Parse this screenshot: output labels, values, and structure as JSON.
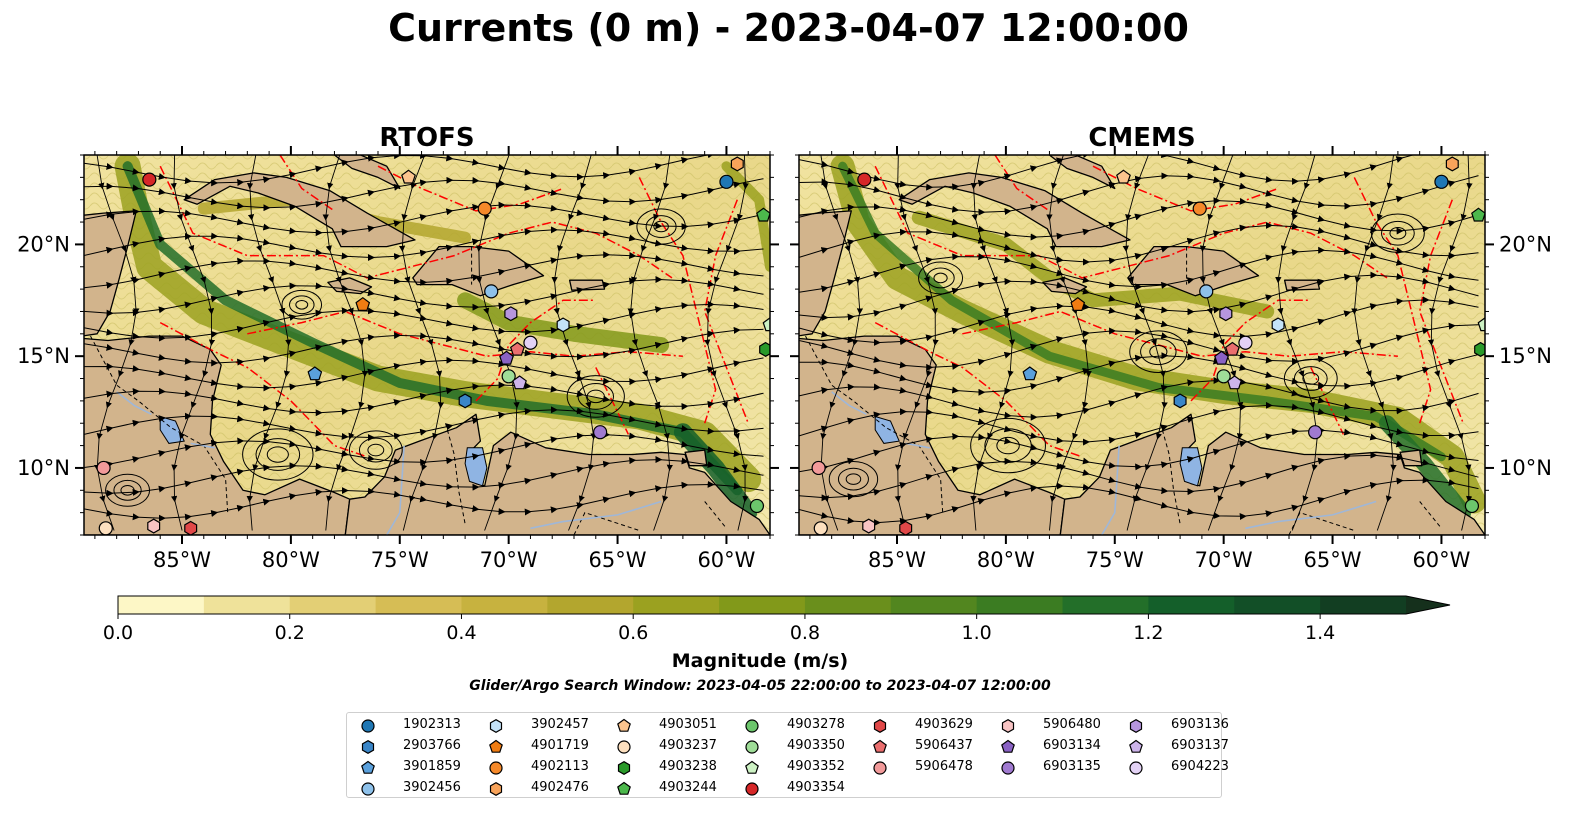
{
  "figure": {
    "title": "Currents (0 m) - 2023-04-07 12:00:00"
  },
  "chart_data": [
    {
      "type": "heatmap",
      "title": "RTOFS",
      "variable": "surface current magnitude with streamlines",
      "xlim": [
        -89.5,
        -58
      ],
      "ylim": [
        7,
        24
      ],
      "x_tick_labels": [
        "85°W",
        "80°W",
        "75°W",
        "70°W",
        "65°W",
        "60°W"
      ],
      "x_tick_values": [
        -85,
        -80,
        -75,
        -70,
        -65,
        -60
      ],
      "y_tick_labels": [
        "10°N",
        "15°N",
        "20°N"
      ],
      "y_tick_values": [
        10,
        15,
        20
      ],
      "floats": [
        {
          "id": "1902313",
          "lon": -60.0,
          "lat": 22.8
        },
        {
          "id": "2903766",
          "lon": -72.0,
          "lat": 13.0
        },
        {
          "id": "3901859",
          "lon": -78.9,
          "lat": 14.2
        },
        {
          "id": "3902456",
          "lon": -70.8,
          "lat": 17.9
        },
        {
          "id": "3902457",
          "lon": -67.5,
          "lat": 16.4
        },
        {
          "id": "4901719",
          "lon": -76.7,
          "lat": 17.3
        },
        {
          "id": "4902113",
          "lon": -71.1,
          "lat": 21.6
        },
        {
          "id": "4902476",
          "lon": -59.5,
          "lat": 23.6
        },
        {
          "id": "4903051",
          "lon": -74.6,
          "lat": 23.0
        },
        {
          "id": "4903237",
          "lon": -88.5,
          "lat": 7.3
        },
        {
          "id": "4903238",
          "lon": -58.2,
          "lat": 15.3
        },
        {
          "id": "4903244",
          "lon": -58.3,
          "lat": 21.3
        },
        {
          "id": "4903278",
          "lon": -58.6,
          "lat": 8.3
        },
        {
          "id": "4903350",
          "lon": -70.0,
          "lat": 14.1
        },
        {
          "id": "4903352",
          "lon": -58.0,
          "lat": 16.4
        },
        {
          "id": "4903354",
          "lon": -86.5,
          "lat": 22.9
        },
        {
          "id": "4903629",
          "lon": -84.6,
          "lat": 7.3
        },
        {
          "id": "5906437",
          "lon": -69.6,
          "lat": 15.3
        },
        {
          "id": "5906478",
          "lon": -88.6,
          "lat": 10.0
        },
        {
          "id": "5906480",
          "lon": -86.3,
          "lat": 7.4
        },
        {
          "id": "6903134",
          "lon": -70.1,
          "lat": 14.9
        },
        {
          "id": "6903135",
          "lon": -65.8,
          "lat": 11.6
        },
        {
          "id": "6903136",
          "lon": -69.9,
          "lat": 16.9
        },
        {
          "id": "6903137",
          "lon": -69.5,
          "lat": 13.8
        },
        {
          "id": "6904223",
          "lon": -69.0,
          "lat": 15.6
        }
      ]
    },
    {
      "type": "heatmap",
      "title": "CMEMS",
      "variable": "surface current magnitude with streamlines",
      "xlim": [
        -89.5,
        -58
      ],
      "ylim": [
        7,
        24
      ],
      "x_tick_labels": [
        "85°W",
        "80°W",
        "75°W",
        "70°W",
        "65°W",
        "60°W"
      ],
      "x_tick_values": [
        -85,
        -80,
        -75,
        -70,
        -65,
        -60
      ],
      "y_tick_labels": [
        "10°N",
        "15°N",
        "20°N"
      ],
      "y_tick_values": [
        10,
        15,
        20
      ],
      "floats": [
        {
          "id": "1902313",
          "lon": -60.0,
          "lat": 22.8
        },
        {
          "id": "2903766",
          "lon": -72.0,
          "lat": 13.0
        },
        {
          "id": "3901859",
          "lon": -78.9,
          "lat": 14.2
        },
        {
          "id": "3902456",
          "lon": -70.8,
          "lat": 17.9
        },
        {
          "id": "3902457",
          "lon": -67.5,
          "lat": 16.4
        },
        {
          "id": "4901719",
          "lon": -76.7,
          "lat": 17.3
        },
        {
          "id": "4902113",
          "lon": -71.1,
          "lat": 21.6
        },
        {
          "id": "4902476",
          "lon": -59.5,
          "lat": 23.6
        },
        {
          "id": "4903051",
          "lon": -74.6,
          "lat": 23.0
        },
        {
          "id": "4903237",
          "lon": -88.5,
          "lat": 7.3
        },
        {
          "id": "4903238",
          "lon": -58.2,
          "lat": 15.3
        },
        {
          "id": "4903244",
          "lon": -58.3,
          "lat": 21.3
        },
        {
          "id": "4903278",
          "lon": -58.6,
          "lat": 8.3
        },
        {
          "id": "4903350",
          "lon": -70.0,
          "lat": 14.1
        },
        {
          "id": "4903352",
          "lon": -58.0,
          "lat": 16.4
        },
        {
          "id": "4903354",
          "lon": -86.5,
          "lat": 22.9
        },
        {
          "id": "4903629",
          "lon": -84.6,
          "lat": 7.3
        },
        {
          "id": "5906437",
          "lon": -69.6,
          "lat": 15.3
        },
        {
          "id": "5906478",
          "lon": -88.6,
          "lat": 10.0
        },
        {
          "id": "5906480",
          "lon": -86.3,
          "lat": 7.4
        },
        {
          "id": "6903134",
          "lon": -70.1,
          "lat": 14.9
        },
        {
          "id": "6903135",
          "lon": -65.8,
          "lat": 11.6
        },
        {
          "id": "6903136",
          "lon": -69.9,
          "lat": 16.9
        },
        {
          "id": "6903137",
          "lon": -69.5,
          "lat": 13.8
        },
        {
          "id": "6904223",
          "lon": -69.0,
          "lat": 15.6
        }
      ]
    }
  ],
  "colorbar": {
    "label": "Magnitude (m/s)",
    "min": 0.0,
    "max": 1.5,
    "extend": "max",
    "tick_values": [
      0.0,
      0.2,
      0.4,
      0.6,
      0.8,
      1.0,
      1.2,
      1.4
    ],
    "tick_labels": [
      "0.0",
      "0.2",
      "0.4",
      "0.6",
      "0.8",
      "1.0",
      "1.2",
      "1.4"
    ],
    "colors": [
      "#fdf7c6",
      "#efe29a",
      "#e3cf75",
      "#d6bd55",
      "#c7b23f",
      "#b3a62e",
      "#9ba120",
      "#82991a",
      "#6a8f1c",
      "#52861f",
      "#3b7c22",
      "#236f29",
      "#145f2a",
      "#124f27",
      "#123e22",
      "#15301c"
    ]
  },
  "search_window_note": "Glider/Argo Search Window: 2023-04-05 22:00:00 to 2023-04-07 12:00:00",
  "legend": {
    "entries": [
      {
        "label": "1902313",
        "marker": "circle",
        "color": "#1f77b4"
      },
      {
        "label": "2903766",
        "marker": "hexagon",
        "color": "#3a86c8"
      },
      {
        "label": "3901859",
        "marker": "pentagon",
        "color": "#5aa0dc"
      },
      {
        "label": "3902456",
        "marker": "circle",
        "color": "#8ec1ea"
      },
      {
        "label": "3902457",
        "marker": "hexagon",
        "color": "#c4e2f8"
      },
      {
        "label": "4901719",
        "marker": "pentagon",
        "color": "#f07c12"
      },
      {
        "label": "4902113",
        "marker": "circle",
        "color": "#f5892a"
      },
      {
        "label": "4902476",
        "marker": "hexagon",
        "color": "#f8a35a"
      },
      {
        "label": "4903051",
        "marker": "pentagon",
        "color": "#fbc48e"
      },
      {
        "label": "4903237",
        "marker": "circle",
        "color": "#fde0bf"
      },
      {
        "label": "4903238",
        "marker": "hexagon",
        "color": "#2a9a2a"
      },
      {
        "label": "4903244",
        "marker": "pentagon",
        "color": "#4cb84c"
      },
      {
        "label": "4903278",
        "marker": "circle",
        "color": "#6cc66c"
      },
      {
        "label": "4903350",
        "marker": "circle",
        "color": "#9fdd98"
      },
      {
        "label": "4903352",
        "marker": "pentagon",
        "color": "#cdf2c4"
      },
      {
        "label": "4903354",
        "marker": "circle",
        "color": "#d62728"
      },
      {
        "label": "4903629",
        "marker": "hexagon",
        "color": "#e04848"
      },
      {
        "label": "5906437",
        "marker": "pentagon",
        "color": "#ea6e6e"
      },
      {
        "label": "5906478",
        "marker": "circle",
        "color": "#f29a9a"
      },
      {
        "label": "5906480",
        "marker": "hexagon",
        "color": "#f8c4c4"
      },
      {
        "label": "6903134",
        "marker": "pentagon",
        "color": "#8a62c4"
      },
      {
        "label": "6903135",
        "marker": "circle",
        "color": "#a07ad0"
      },
      {
        "label": "6903136",
        "marker": "hexagon",
        "color": "#b696de"
      },
      {
        "label": "6903137",
        "marker": "pentagon",
        "color": "#cdb4ea"
      },
      {
        "label": "6904223",
        "marker": "circle",
        "color": "#e3d2f5"
      }
    ]
  },
  "map_colors": {
    "land": "#d2b48c",
    "lake": "#8fb4e3",
    "eez_lines": "#ff0000",
    "coastline": "#000000"
  }
}
